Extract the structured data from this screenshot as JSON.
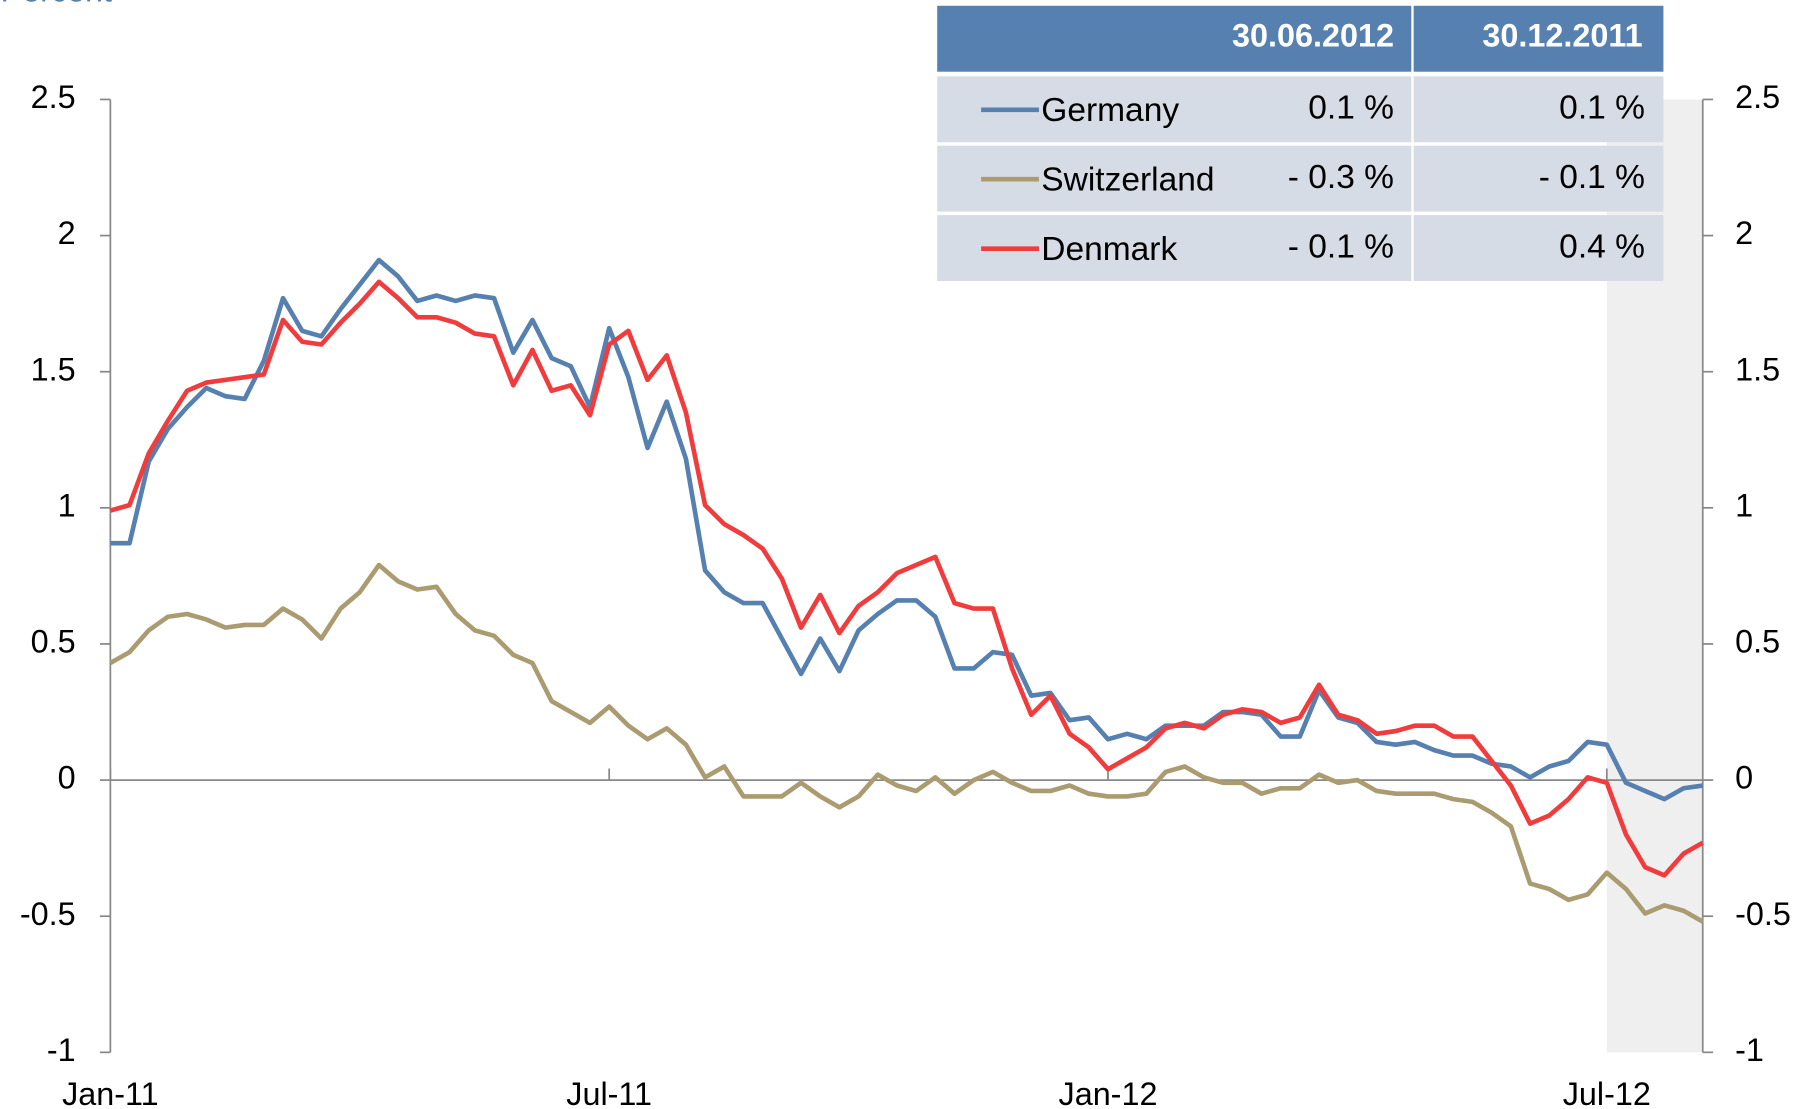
{
  "chart_data": {
    "type": "line",
    "y_label": "Percent",
    "x": [
      0,
      1,
      2,
      3,
      4,
      5,
      6,
      7,
      8,
      9,
      10,
      11,
      12,
      13,
      14,
      15,
      16,
      17,
      18,
      19,
      20,
      21,
      22,
      23,
      24,
      25,
      26,
      27,
      28,
      29,
      30,
      31,
      32,
      33,
      34,
      35,
      36,
      37,
      38,
      39,
      40,
      41,
      42,
      43,
      44,
      45,
      46,
      47,
      48,
      49,
      50,
      51,
      52,
      53,
      54,
      55,
      56,
      57,
      58,
      59,
      60,
      61,
      62,
      63,
      64,
      65,
      66,
      67,
      68,
      69,
      70,
      71,
      72,
      73,
      74,
      75,
      76,
      77,
      78,
      79,
      80,
      81,
      82,
      83
    ],
    "xlim": [
      0,
      83
    ],
    "xticks": [
      {
        "value": 0,
        "label": "Jan-11"
      },
      {
        "value": 26,
        "label": "Jul-11"
      },
      {
        "value": 52,
        "label": "Jan-12"
      },
      {
        "value": 78,
        "label": "Jul-12"
      }
    ],
    "ylim": [
      -1,
      2.5
    ],
    "yticks": [
      2.5,
      2,
      1.5,
      1,
      0.5,
      0,
      -0.5,
      -1
    ],
    "y2lim": [
      -1,
      2.5
    ],
    "y2ticks": [
      2.5,
      2,
      1.5,
      1,
      0.5,
      0,
      -0.5,
      -1
    ],
    "shaded_region": [
      78,
      83
    ],
    "series": [
      {
        "name": "Germany",
        "color": "#5580b0",
        "values": [
          0.87,
          0.87,
          1.17,
          1.29,
          1.37,
          1.44,
          1.41,
          1.4,
          1.54,
          1.77,
          1.65,
          1.63,
          1.73,
          1.82,
          1.91,
          1.85,
          1.76,
          1.78,
          1.76,
          1.78,
          1.77,
          1.57,
          1.69,
          1.55,
          1.52,
          1.37,
          1.66,
          1.48,
          1.22,
          1.39,
          1.18,
          0.77,
          0.69,
          0.65,
          0.65,
          0.52,
          0.39,
          0.52,
          0.4,
          0.55,
          0.61,
          0.66,
          0.66,
          0.6,
          0.41,
          0.41,
          0.47,
          0.46,
          0.31,
          0.32,
          0.22,
          0.23,
          0.15,
          0.17,
          0.15,
          0.2,
          0.2,
          0.2,
          0.25,
          0.25,
          0.24,
          0.16,
          0.16,
          0.33,
          0.23,
          0.21,
          0.14,
          0.13,
          0.14,
          0.11,
          0.09,
          0.09,
          0.06,
          0.05,
          0.01,
          0.05,
          0.07,
          0.14,
          0.13,
          -0.01,
          -0.04,
          -0.07,
          -0.03,
          -0.02
        ]
      },
      {
        "name": "Switzerland",
        "color": "#ab9b70",
        "values": [
          0.43,
          0.47,
          0.55,
          0.6,
          0.61,
          0.59,
          0.56,
          0.57,
          0.57,
          0.63,
          0.59,
          0.52,
          0.63,
          0.69,
          0.79,
          0.73,
          0.7,
          0.71,
          0.61,
          0.55,
          0.53,
          0.46,
          0.43,
          0.29,
          0.25,
          0.21,
          0.27,
          0.2,
          0.15,
          0.19,
          0.13,
          0.01,
          0.05,
          -0.06,
          -0.06,
          -0.06,
          -0.01,
          -0.06,
          -0.1,
          -0.06,
          0.02,
          -0.02,
          -0.04,
          0.01,
          -0.05,
          0.0,
          0.03,
          -0.01,
          -0.04,
          -0.04,
          -0.02,
          -0.05,
          -0.06,
          -0.06,
          -0.05,
          0.03,
          0.05,
          0.01,
          -0.01,
          -0.01,
          -0.05,
          -0.03,
          -0.03,
          0.02,
          -0.01,
          0.0,
          -0.04,
          -0.05,
          -0.05,
          -0.05,
          -0.07,
          -0.08,
          -0.12,
          -0.17,
          -0.38,
          -0.4,
          -0.44,
          -0.42,
          -0.34,
          -0.4,
          -0.49,
          -0.46,
          -0.48,
          -0.52
        ]
      },
      {
        "name": "Denmark",
        "color": "#f03c3c",
        "values": [
          0.99,
          1.01,
          1.2,
          1.32,
          1.43,
          1.46,
          1.47,
          1.48,
          1.49,
          1.69,
          1.61,
          1.6,
          1.68,
          1.75,
          1.83,
          1.77,
          1.7,
          1.7,
          1.68,
          1.64,
          1.63,
          1.45,
          1.58,
          1.43,
          1.45,
          1.34,
          1.6,
          1.65,
          1.47,
          1.56,
          1.35,
          1.01,
          0.94,
          0.9,
          0.85,
          0.74,
          0.56,
          0.68,
          0.54,
          0.64,
          0.69,
          0.76,
          0.79,
          0.82,
          0.65,
          0.63,
          0.63,
          0.41,
          0.24,
          0.31,
          0.17,
          0.12,
          0.04,
          0.08,
          0.12,
          0.19,
          0.21,
          0.19,
          0.24,
          0.26,
          0.25,
          0.21,
          0.23,
          0.35,
          0.24,
          0.22,
          0.17,
          0.18,
          0.2,
          0.2,
          0.16,
          0.16,
          0.07,
          -0.02,
          -0.16,
          -0.13,
          -0.07,
          0.01,
          -0.01,
          -0.2,
          -0.32,
          -0.35,
          -0.27,
          -0.23
        ]
      }
    ],
    "legend_table": {
      "headers": [
        "30.06.2012",
        "30.12.2011"
      ],
      "rows": [
        [
          "0.1 %",
          "0.1 %"
        ],
        [
          "- 0.3 %",
          "- 0.1 %"
        ],
        [
          "- 0.1 %",
          "0.4 %"
        ]
      ]
    }
  }
}
